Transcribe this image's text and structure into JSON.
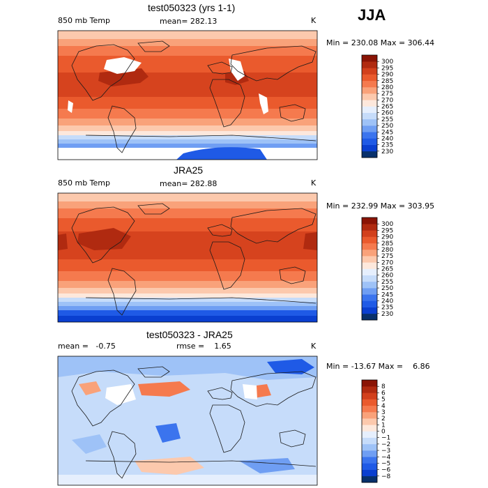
{
  "season": "JJA",
  "chart_data": [
    {
      "type": "heatmap",
      "title": "test050323 (yrs 1-1)",
      "variable": "850 mb Temp",
      "mean_label": "mean= 282.13",
      "units": "K",
      "minmax_label": "Min = 230.08 Max = 306.44",
      "min": 230.08,
      "max": 306.44,
      "mean": 282.13,
      "levels": [
        230,
        235,
        240,
        245,
        250,
        255,
        260,
        265,
        270,
        275,
        280,
        285,
        290,
        295,
        300
      ],
      "level_labels": [
        "300",
        "295",
        "290",
        "285",
        "280",
        "275",
        "270",
        "265",
        "260",
        "255",
        "250",
        "245",
        "240",
        "235",
        "230"
      ],
      "colors": [
        "#08306b",
        "#0a3fd0",
        "#1f5ae6",
        "#3b74ee",
        "#6f9ef3",
        "#9ec2f7",
        "#c6dcfa",
        "#e6effd",
        "#fde8dc",
        "#fcc9ad",
        "#f9a27a",
        "#f57a4e",
        "#ea5a2d",
        "#d2401c",
        "#b02a10",
        "#8a1405"
      ]
    },
    {
      "type": "heatmap",
      "title": "JRA25",
      "variable": "850 mb Temp",
      "mean_label": "mean= 282.88",
      "units": "K",
      "minmax_label": "Min = 232.99 Max = 303.95",
      "min": 232.99,
      "max": 303.95,
      "mean": 282.88,
      "levels": [
        230,
        235,
        240,
        245,
        250,
        255,
        260,
        265,
        270,
        275,
        280,
        285,
        290,
        295,
        300
      ],
      "level_labels": [
        "300",
        "295",
        "290",
        "285",
        "280",
        "275",
        "270",
        "265",
        "260",
        "255",
        "250",
        "245",
        "240",
        "235",
        "230"
      ],
      "colors": [
        "#08306b",
        "#0a3fd0",
        "#1f5ae6",
        "#3b74ee",
        "#6f9ef3",
        "#9ec2f7",
        "#c6dcfa",
        "#e6effd",
        "#fde8dc",
        "#fcc9ad",
        "#f9a27a",
        "#f57a4e",
        "#ea5a2d",
        "#d2401c",
        "#b02a10",
        "#8a1405"
      ]
    },
    {
      "type": "heatmap",
      "title": "test050323 - JRA25",
      "mean_label": "mean =   -0.75",
      "rmse_label": "rmse =    1.65",
      "units": "K",
      "minmax_label": "Min = -13.67 Max =    6.86",
      "min": -13.67,
      "max": 6.86,
      "mean": -0.75,
      "rmse": 1.65,
      "levels": [
        -8,
        -6,
        -5,
        -4,
        -3,
        -2,
        -1,
        0,
        1,
        2,
        3,
        4,
        5,
        6,
        8
      ],
      "level_labels": [
        "8",
        "6",
        "5",
        "4",
        "3",
        "2",
        "1",
        "0",
        "−1",
        "−2",
        "−3",
        "−4",
        "−5",
        "−6",
        "−8"
      ],
      "colors": [
        "#08306b",
        "#0a3fd0",
        "#1f5ae6",
        "#3b74ee",
        "#6f9ef3",
        "#9ec2f7",
        "#c6dcfa",
        "#e6effd",
        "#fde8dc",
        "#fcc9ad",
        "#f9a27a",
        "#f57a4e",
        "#ea5a2d",
        "#d2401c",
        "#b02a10",
        "#8a1405"
      ]
    }
  ]
}
